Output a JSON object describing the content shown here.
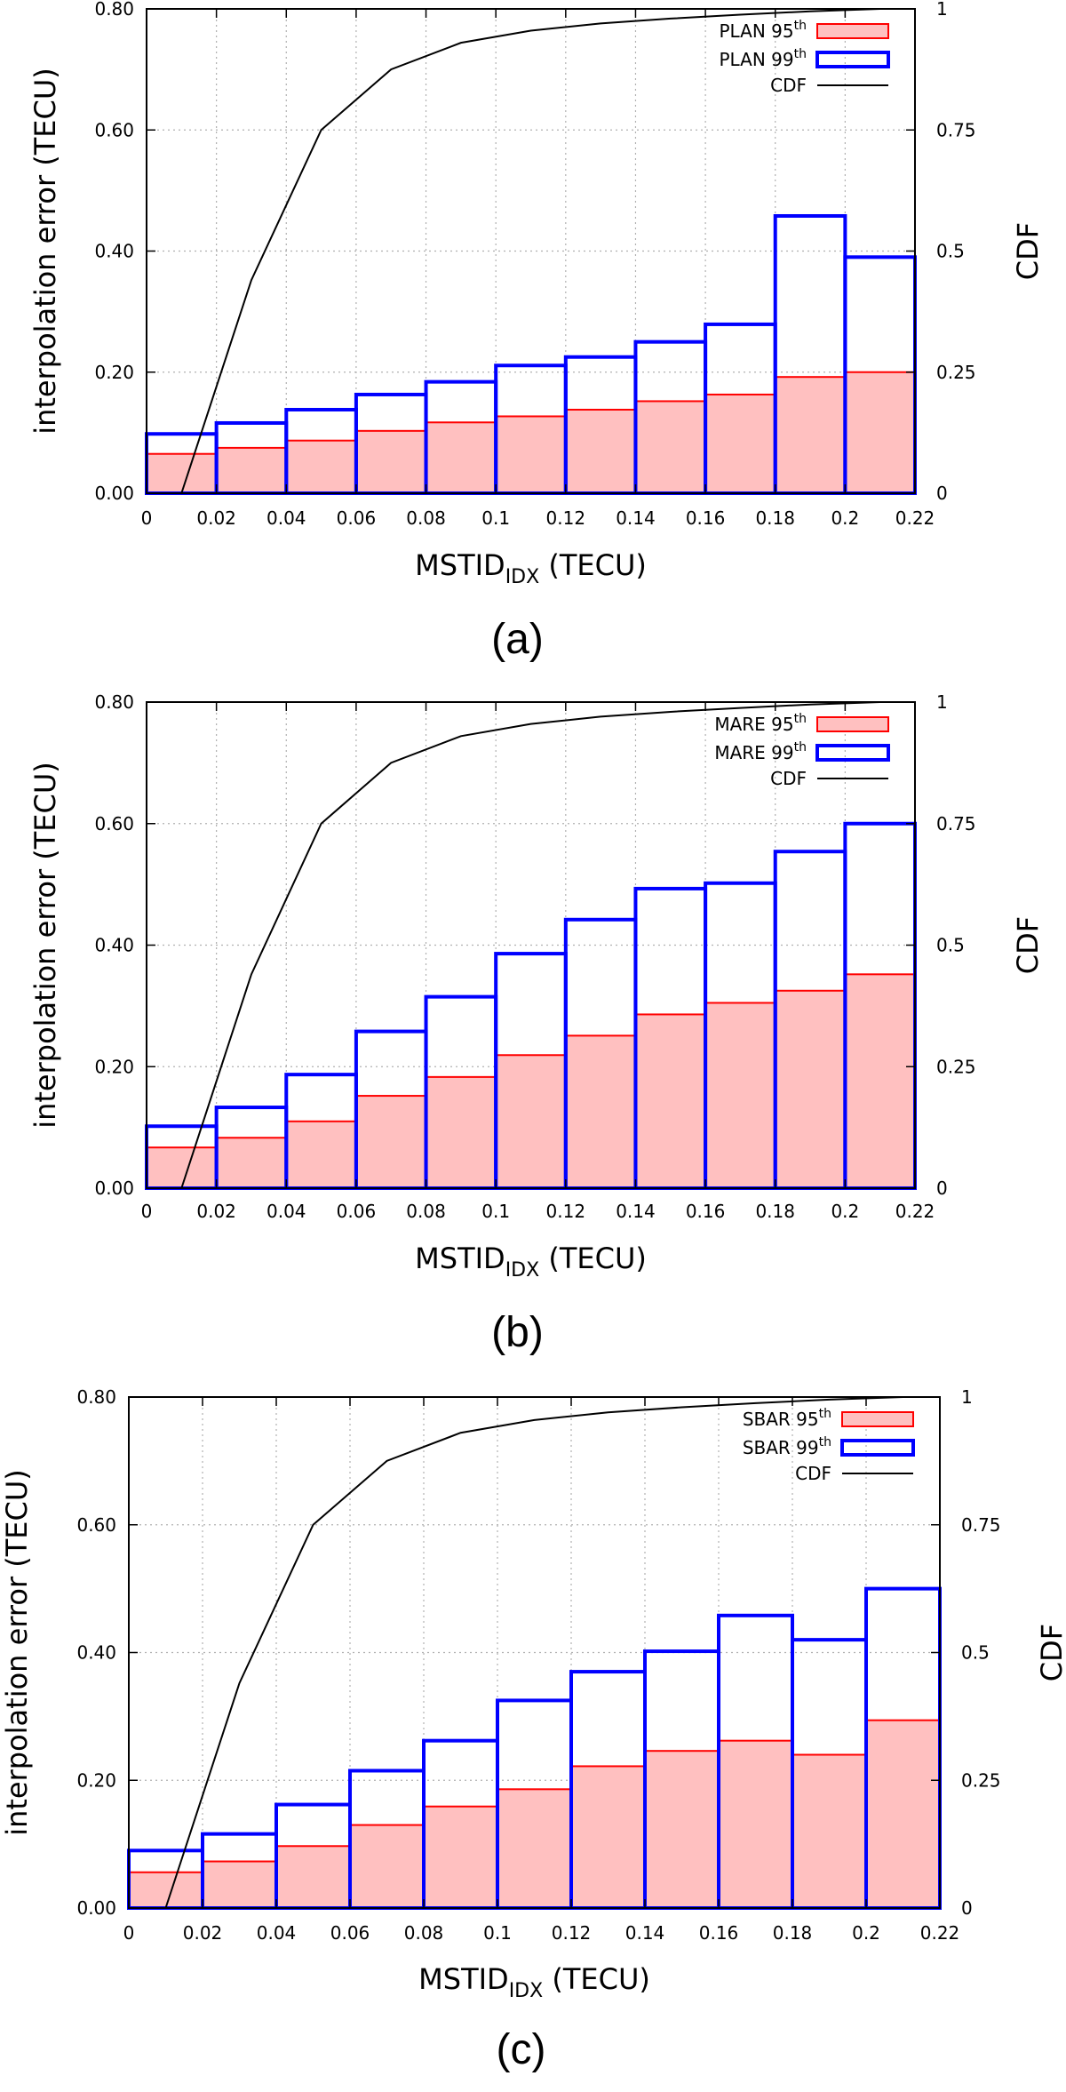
{
  "chart_data": [
    {
      "panel_label": "(a)",
      "type": "bar",
      "bin_edges": [
        0,
        0.02,
        0.04,
        0.06,
        0.08,
        0.1,
        0.12,
        0.14,
        0.16,
        0.18,
        0.2,
        0.22
      ],
      "xlim": [
        0,
        0.22
      ],
      "x_ticks": [
        "0",
        "0.02",
        "0.04",
        "0.06",
        "0.08",
        "0.1",
        "0.12",
        "0.14",
        "0.16",
        "0.18",
        "0.2",
        "0.22"
      ],
      "xlabel_main": "MSTID",
      "xlabel_sub": "IDX",
      "xlabel_tail": " (TECU)",
      "ylabel": "interpolation error (TECU)",
      "ylim": [
        0,
        0.8
      ],
      "y_ticks": [
        "0.00",
        "0.20",
        "0.40",
        "0.60",
        "0.80"
      ],
      "y2label": "CDF",
      "y2lim": [
        0,
        1
      ],
      "y2_ticks": [
        "0",
        "0.25",
        "0.5",
        "0.75",
        "1"
      ],
      "grid": true,
      "legend_position": "top-right",
      "series": [
        {
          "name": "PLAN 95",
          "name_sup": "th",
          "kind": "bar",
          "color": "#ff0000",
          "fill": "#ffc0c0",
          "values": [
            0.065,
            0.075,
            0.087,
            0.103,
            0.117,
            0.127,
            0.138,
            0.152,
            0.163,
            0.192,
            0.2
          ]
        },
        {
          "name": "PLAN 99",
          "name_sup": "th",
          "kind": "bar",
          "color": "#0000ff",
          "fill": "none",
          "values": [
            0.098,
            0.116,
            0.138,
            0.163,
            0.184,
            0.211,
            0.225,
            0.25,
            0.279,
            0.458,
            0.39
          ]
        },
        {
          "name": "CDF",
          "name_sup": "",
          "kind": "line",
          "axis": "right",
          "color": "#000000",
          "x": [
            0.01,
            0.03,
            0.05,
            0.07,
            0.09,
            0.11,
            0.13,
            0.15,
            0.17,
            0.19,
            0.21
          ],
          "values": [
            0.0,
            0.44,
            0.75,
            0.875,
            0.93,
            0.955,
            0.97,
            0.98,
            0.988,
            0.995,
            1.0
          ]
        }
      ]
    },
    {
      "panel_label": "(b)",
      "type": "bar",
      "bin_edges": [
        0,
        0.02,
        0.04,
        0.06,
        0.08,
        0.1,
        0.12,
        0.14,
        0.16,
        0.18,
        0.2,
        0.22
      ],
      "xlim": [
        0,
        0.22
      ],
      "x_ticks": [
        "0",
        "0.02",
        "0.04",
        "0.06",
        "0.08",
        "0.1",
        "0.12",
        "0.14",
        "0.16",
        "0.18",
        "0.2",
        "0.22"
      ],
      "xlabel_main": "MSTID",
      "xlabel_sub": "IDX",
      "xlabel_tail": " (TECU)",
      "ylabel": "interpolation error (TECU)",
      "ylim": [
        0,
        0.8
      ],
      "y_ticks": [
        "0.00",
        "0.20",
        "0.40",
        "0.60",
        "0.80"
      ],
      "y2label": "CDF",
      "y2lim": [
        0,
        1
      ],
      "y2_ticks": [
        "0",
        "0.25",
        "0.5",
        "0.75",
        "1"
      ],
      "grid": true,
      "legend_position": "top-right",
      "series": [
        {
          "name": "MARE 95",
          "name_sup": "th",
          "kind": "bar",
          "color": "#ff0000",
          "fill": "#ffc0c0",
          "values": [
            0.067,
            0.083,
            0.11,
            0.152,
            0.183,
            0.219,
            0.251,
            0.286,
            0.305,
            0.325,
            0.352
          ]
        },
        {
          "name": "MARE 99",
          "name_sup": "th",
          "kind": "bar",
          "color": "#0000ff",
          "fill": "none",
          "values": [
            0.102,
            0.133,
            0.187,
            0.258,
            0.315,
            0.386,
            0.442,
            0.493,
            0.502,
            0.554,
            0.6
          ]
        },
        {
          "name": "CDF",
          "name_sup": "",
          "kind": "line",
          "axis": "right",
          "color": "#000000",
          "x": [
            0.01,
            0.03,
            0.05,
            0.07,
            0.09,
            0.11,
            0.13,
            0.15,
            0.17,
            0.19,
            0.21
          ],
          "values": [
            0.0,
            0.44,
            0.75,
            0.875,
            0.93,
            0.955,
            0.97,
            0.98,
            0.988,
            0.995,
            1.0
          ]
        }
      ]
    },
    {
      "panel_label": "(c)",
      "type": "bar",
      "bin_edges": [
        0,
        0.02,
        0.04,
        0.06,
        0.08,
        0.1,
        0.12,
        0.14,
        0.16,
        0.18,
        0.2,
        0.22
      ],
      "xlim": [
        0,
        0.22
      ],
      "x_ticks": [
        "0",
        "0.02",
        "0.04",
        "0.06",
        "0.08",
        "0.1",
        "0.12",
        "0.14",
        "0.16",
        "0.18",
        "0.2",
        "0.22"
      ],
      "xlabel_main": "MSTID",
      "xlabel_sub": "IDX",
      "xlabel_tail": " (TECU)",
      "ylabel": "interpolation error (TECU)",
      "ylim": [
        0,
        0.8
      ],
      "y_ticks": [
        "0.00",
        "0.20",
        "0.40",
        "0.60",
        "0.80"
      ],
      "y2label": "CDF",
      "y2lim": [
        0,
        1
      ],
      "y2_ticks": [
        "0",
        "0.25",
        "0.5",
        "0.75",
        "1"
      ],
      "grid": true,
      "legend_position": "top-right",
      "series": [
        {
          "name": "SBAR 95",
          "name_sup": "th",
          "kind": "bar",
          "color": "#ff0000",
          "fill": "#ffc0c0",
          "values": [
            0.056,
            0.073,
            0.097,
            0.13,
            0.159,
            0.186,
            0.222,
            0.246,
            0.262,
            0.24,
            0.294
          ]
        },
        {
          "name": "SBAR 99",
          "name_sup": "th",
          "kind": "bar",
          "color": "#0000ff",
          "fill": "none",
          "values": [
            0.09,
            0.116,
            0.162,
            0.215,
            0.262,
            0.325,
            0.37,
            0.402,
            0.458,
            0.42,
            0.5
          ]
        },
        {
          "name": "CDF",
          "name_sup": "",
          "kind": "line",
          "axis": "right",
          "color": "#000000",
          "x": [
            0.01,
            0.03,
            0.05,
            0.07,
            0.09,
            0.11,
            0.13,
            0.15,
            0.17,
            0.19,
            0.21
          ],
          "values": [
            0.0,
            0.44,
            0.75,
            0.875,
            0.93,
            0.955,
            0.97,
            0.98,
            0.988,
            0.995,
            1.0
          ]
        }
      ]
    }
  ]
}
